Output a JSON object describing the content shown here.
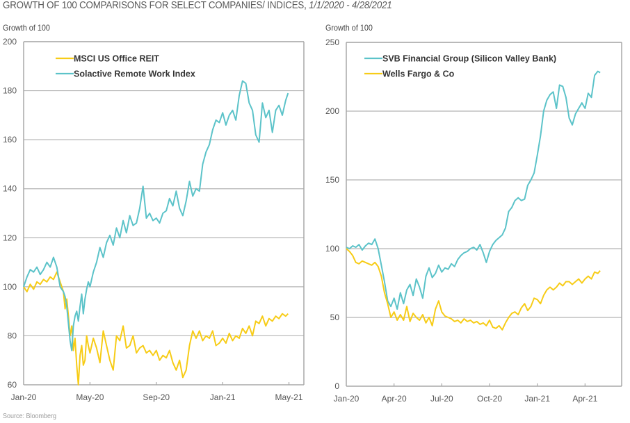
{
  "page": {
    "title_main": "GROWTH OF 100 COMPARISONS FOR SELECT COMPANIES/ INDICES, ",
    "title_dates": "1/1/2020 - 4/28/2021",
    "source": "Source: Bloomberg"
  },
  "colors": {
    "teal": "#5cc3c9",
    "yellow": "#f7cc17",
    "grid": "#b5b5b5",
    "axis": "#a8a8a8"
  },
  "chart_data": [
    {
      "type": "line",
      "title": "",
      "ylabel": "Growth of 100",
      "xlabel": "",
      "ylim": [
        60,
        200
      ],
      "yticks": [
        60,
        80,
        100,
        120,
        140,
        160,
        180,
        200
      ],
      "xlim_months": [
        0,
        16.9
      ],
      "xticks": [
        {
          "label": "Jan-20",
          "m": 0
        },
        {
          "label": "May-20",
          "m": 4
        },
        {
          "label": "Sep-20",
          "m": 8
        },
        {
          "label": "Jan-21",
          "m": 12
        },
        {
          "label": "May-21",
          "m": 16
        }
      ],
      "grid": true,
      "legend_position": "top-left",
      "series": [
        {
          "name": "MSCI US Office REIT",
          "color": "#f7cc17",
          "x_months": [
            0,
            0.2,
            0.4,
            0.6,
            0.8,
            1.0,
            1.2,
            1.4,
            1.6,
            1.8,
            2.0,
            2.2,
            2.4,
            2.5,
            2.6,
            2.7,
            2.8,
            2.9,
            3.0,
            3.1,
            3.2,
            3.3,
            3.4,
            3.5,
            3.6,
            3.7,
            3.8,
            3.9,
            4.0,
            4.2,
            4.4,
            4.6,
            4.8,
            5.0,
            5.2,
            5.4,
            5.6,
            5.8,
            6.0,
            6.2,
            6.4,
            6.6,
            6.8,
            7.0,
            7.2,
            7.4,
            7.6,
            7.8,
            8.0,
            8.2,
            8.4,
            8.6,
            8.8,
            9.0,
            9.2,
            9.4,
            9.6,
            9.8,
            10.0,
            10.2,
            10.4,
            10.6,
            10.8,
            11.0,
            11.2,
            11.4,
            11.6,
            11.8,
            12.0,
            12.2,
            12.4,
            12.6,
            12.8,
            13.0,
            13.2,
            13.4,
            13.6,
            13.8,
            14.0,
            14.2,
            14.4,
            14.6,
            14.8,
            15.0,
            15.2,
            15.4,
            15.6,
            15.8,
            15.95
          ],
          "values": [
            100,
            98,
            101,
            99,
            102,
            101,
            103,
            102,
            104,
            103,
            106,
            102,
            98,
            91,
            95,
            88,
            80,
            84,
            74,
            79,
            68,
            60,
            72,
            76,
            68,
            70,
            80,
            76,
            73,
            79,
            75,
            69,
            82,
            76,
            70,
            66,
            80,
            78,
            84,
            75,
            76,
            80,
            73,
            75,
            76,
            73,
            74,
            72,
            74,
            70,
            72,
            71,
            74,
            69,
            66,
            70,
            63,
            66,
            76,
            82,
            79,
            82,
            78,
            80,
            79,
            82,
            76,
            77,
            79,
            77,
            81,
            78,
            80,
            79,
            83,
            81,
            84,
            80,
            86,
            85,
            88,
            84,
            87,
            86,
            88,
            87,
            89,
            88,
            89
          ]
        },
        {
          "name": "Solactive Remote Work Index",
          "color": "#5cc3c9",
          "x_months": [
            0,
            0.2,
            0.4,
            0.6,
            0.8,
            1.0,
            1.2,
            1.4,
            1.6,
            1.8,
            2.0,
            2.2,
            2.4,
            2.5,
            2.6,
            2.7,
            2.8,
            2.9,
            3.0,
            3.1,
            3.2,
            3.3,
            3.4,
            3.5,
            3.6,
            3.7,
            3.8,
            3.9,
            4.0,
            4.2,
            4.4,
            4.6,
            4.8,
            5.0,
            5.2,
            5.4,
            5.6,
            5.8,
            6.0,
            6.2,
            6.4,
            6.6,
            6.8,
            7.0,
            7.2,
            7.4,
            7.6,
            7.8,
            8.0,
            8.2,
            8.4,
            8.6,
            8.8,
            9.0,
            9.2,
            9.4,
            9.6,
            9.8,
            10.0,
            10.2,
            10.4,
            10.6,
            10.8,
            11.0,
            11.2,
            11.4,
            11.6,
            11.8,
            12.0,
            12.2,
            12.4,
            12.6,
            12.8,
            13.0,
            13.2,
            13.4,
            13.6,
            13.8,
            14.0,
            14.2,
            14.4,
            14.6,
            14.8,
            15.0,
            15.2,
            15.4,
            15.6,
            15.8,
            15.95
          ],
          "values": [
            100,
            104,
            107,
            106,
            108,
            105,
            107,
            110,
            108,
            112,
            108,
            100,
            98,
            96,
            92,
            85,
            78,
            74,
            84,
            88,
            90,
            86,
            92,
            97,
            89,
            95,
            99,
            102,
            100,
            106,
            110,
            116,
            112,
            118,
            121,
            117,
            124,
            120,
            127,
            122,
            129,
            125,
            126,
            132,
            141,
            128,
            130,
            127,
            128,
            126,
            130,
            131,
            136,
            133,
            139,
            132,
            129,
            135,
            143,
            137,
            140,
            139,
            150,
            155,
            158,
            164,
            168,
            167,
            171,
            166,
            170,
            172,
            168,
            178,
            184,
            183,
            175,
            172,
            162,
            159,
            175,
            169,
            172,
            163,
            172,
            174,
            170,
            176,
            179
          ]
        }
      ]
    },
    {
      "type": "line",
      "title": "",
      "ylabel": "Growth of 100",
      "xlabel": "",
      "ylim": [
        0,
        250
      ],
      "yticks": [
        0,
        50,
        100,
        150,
        200,
        250
      ],
      "xlim_months": [
        0,
        17.3
      ],
      "xticks": [
        {
          "label": "Jan-20",
          "m": 0
        },
        {
          "label": "Apr-20",
          "m": 3
        },
        {
          "label": "Jul-20",
          "m": 6
        },
        {
          "label": "Oct-20",
          "m": 9
        },
        {
          "label": "Jan-21",
          "m": 12
        },
        {
          "label": "Apr-21",
          "m": 15
        }
      ],
      "grid": true,
      "legend_position": "top-left",
      "series": [
        {
          "name": "SVB Financial Group (Silicon Valley Bank)",
          "color": "#5cc3c9",
          "x_months": [
            0,
            0.2,
            0.4,
            0.6,
            0.8,
            1.0,
            1.2,
            1.4,
            1.6,
            1.8,
            2.0,
            2.2,
            2.4,
            2.6,
            2.8,
            3.0,
            3.2,
            3.4,
            3.6,
            3.8,
            4.0,
            4.2,
            4.4,
            4.6,
            4.8,
            5.0,
            5.2,
            5.4,
            5.6,
            5.8,
            6.0,
            6.2,
            6.4,
            6.6,
            6.8,
            7.0,
            7.2,
            7.4,
            7.6,
            7.8,
            8.0,
            8.2,
            8.4,
            8.6,
            8.8,
            9.0,
            9.2,
            9.4,
            9.6,
            9.8,
            10.0,
            10.2,
            10.4,
            10.6,
            10.8,
            11.0,
            11.2,
            11.4,
            11.6,
            11.8,
            12.0,
            12.2,
            12.4,
            12.6,
            12.8,
            13.0,
            13.2,
            13.4,
            13.6,
            13.8,
            14.0,
            14.2,
            14.4,
            14.6,
            14.8,
            15.0,
            15.2,
            15.4,
            15.6,
            15.8,
            15.95
          ],
          "values": [
            101,
            100,
            102,
            101,
            103,
            99,
            102,
            104,
            103,
            107,
            100,
            88,
            76,
            62,
            58,
            64,
            56,
            68,
            60,
            70,
            74,
            66,
            78,
            72,
            64,
            80,
            86,
            79,
            82,
            88,
            83,
            86,
            85,
            89,
            87,
            92,
            95,
            97,
            98,
            100,
            101,
            99,
            103,
            97,
            90,
            98,
            103,
            106,
            108,
            110,
            115,
            127,
            130,
            135,
            137,
            135,
            136,
            146,
            150,
            155,
            168,
            182,
            200,
            208,
            212,
            214,
            202,
            219,
            218,
            210,
            195,
            190,
            198,
            202,
            206,
            202,
            213,
            210,
            226,
            229,
            228
          ]
        },
        {
          "name": "Wells Fargo & Co",
          "color": "#f7cc17",
          "x_months": [
            0,
            0.2,
            0.4,
            0.6,
            0.8,
            1.0,
            1.2,
            1.4,
            1.6,
            1.8,
            2.0,
            2.2,
            2.4,
            2.6,
            2.8,
            3.0,
            3.2,
            3.4,
            3.6,
            3.8,
            4.0,
            4.2,
            4.4,
            4.6,
            4.8,
            5.0,
            5.2,
            5.4,
            5.6,
            5.8,
            6.0,
            6.2,
            6.4,
            6.6,
            6.8,
            7.0,
            7.2,
            7.4,
            7.6,
            7.8,
            8.0,
            8.2,
            8.4,
            8.6,
            8.8,
            9.0,
            9.2,
            9.4,
            9.6,
            9.8,
            10.0,
            10.2,
            10.4,
            10.6,
            10.8,
            11.0,
            11.2,
            11.4,
            11.6,
            11.8,
            12.0,
            12.2,
            12.4,
            12.6,
            12.8,
            13.0,
            13.2,
            13.4,
            13.6,
            13.8,
            14.0,
            14.2,
            14.4,
            14.6,
            14.8,
            15.0,
            15.2,
            15.4,
            15.6,
            15.8,
            15.95
          ],
          "values": [
            100,
            98,
            95,
            90,
            89,
            91,
            90,
            89,
            88,
            90,
            87,
            80,
            68,
            60,
            50,
            54,
            48,
            52,
            48,
            58,
            47,
            53,
            50,
            48,
            52,
            46,
            50,
            44,
            56,
            62,
            54,
            51,
            50,
            49,
            47,
            48,
            46,
            49,
            47,
            48,
            46,
            47,
            45,
            46,
            44,
            48,
            43,
            42,
            44,
            41,
            46,
            50,
            53,
            54,
            52,
            57,
            60,
            55,
            58,
            64,
            63,
            60,
            66,
            70,
            72,
            70,
            72,
            75,
            73,
            76,
            76,
            74,
            76,
            78,
            75,
            78,
            80,
            78,
            83,
            82,
            84
          ]
        }
      ]
    }
  ]
}
